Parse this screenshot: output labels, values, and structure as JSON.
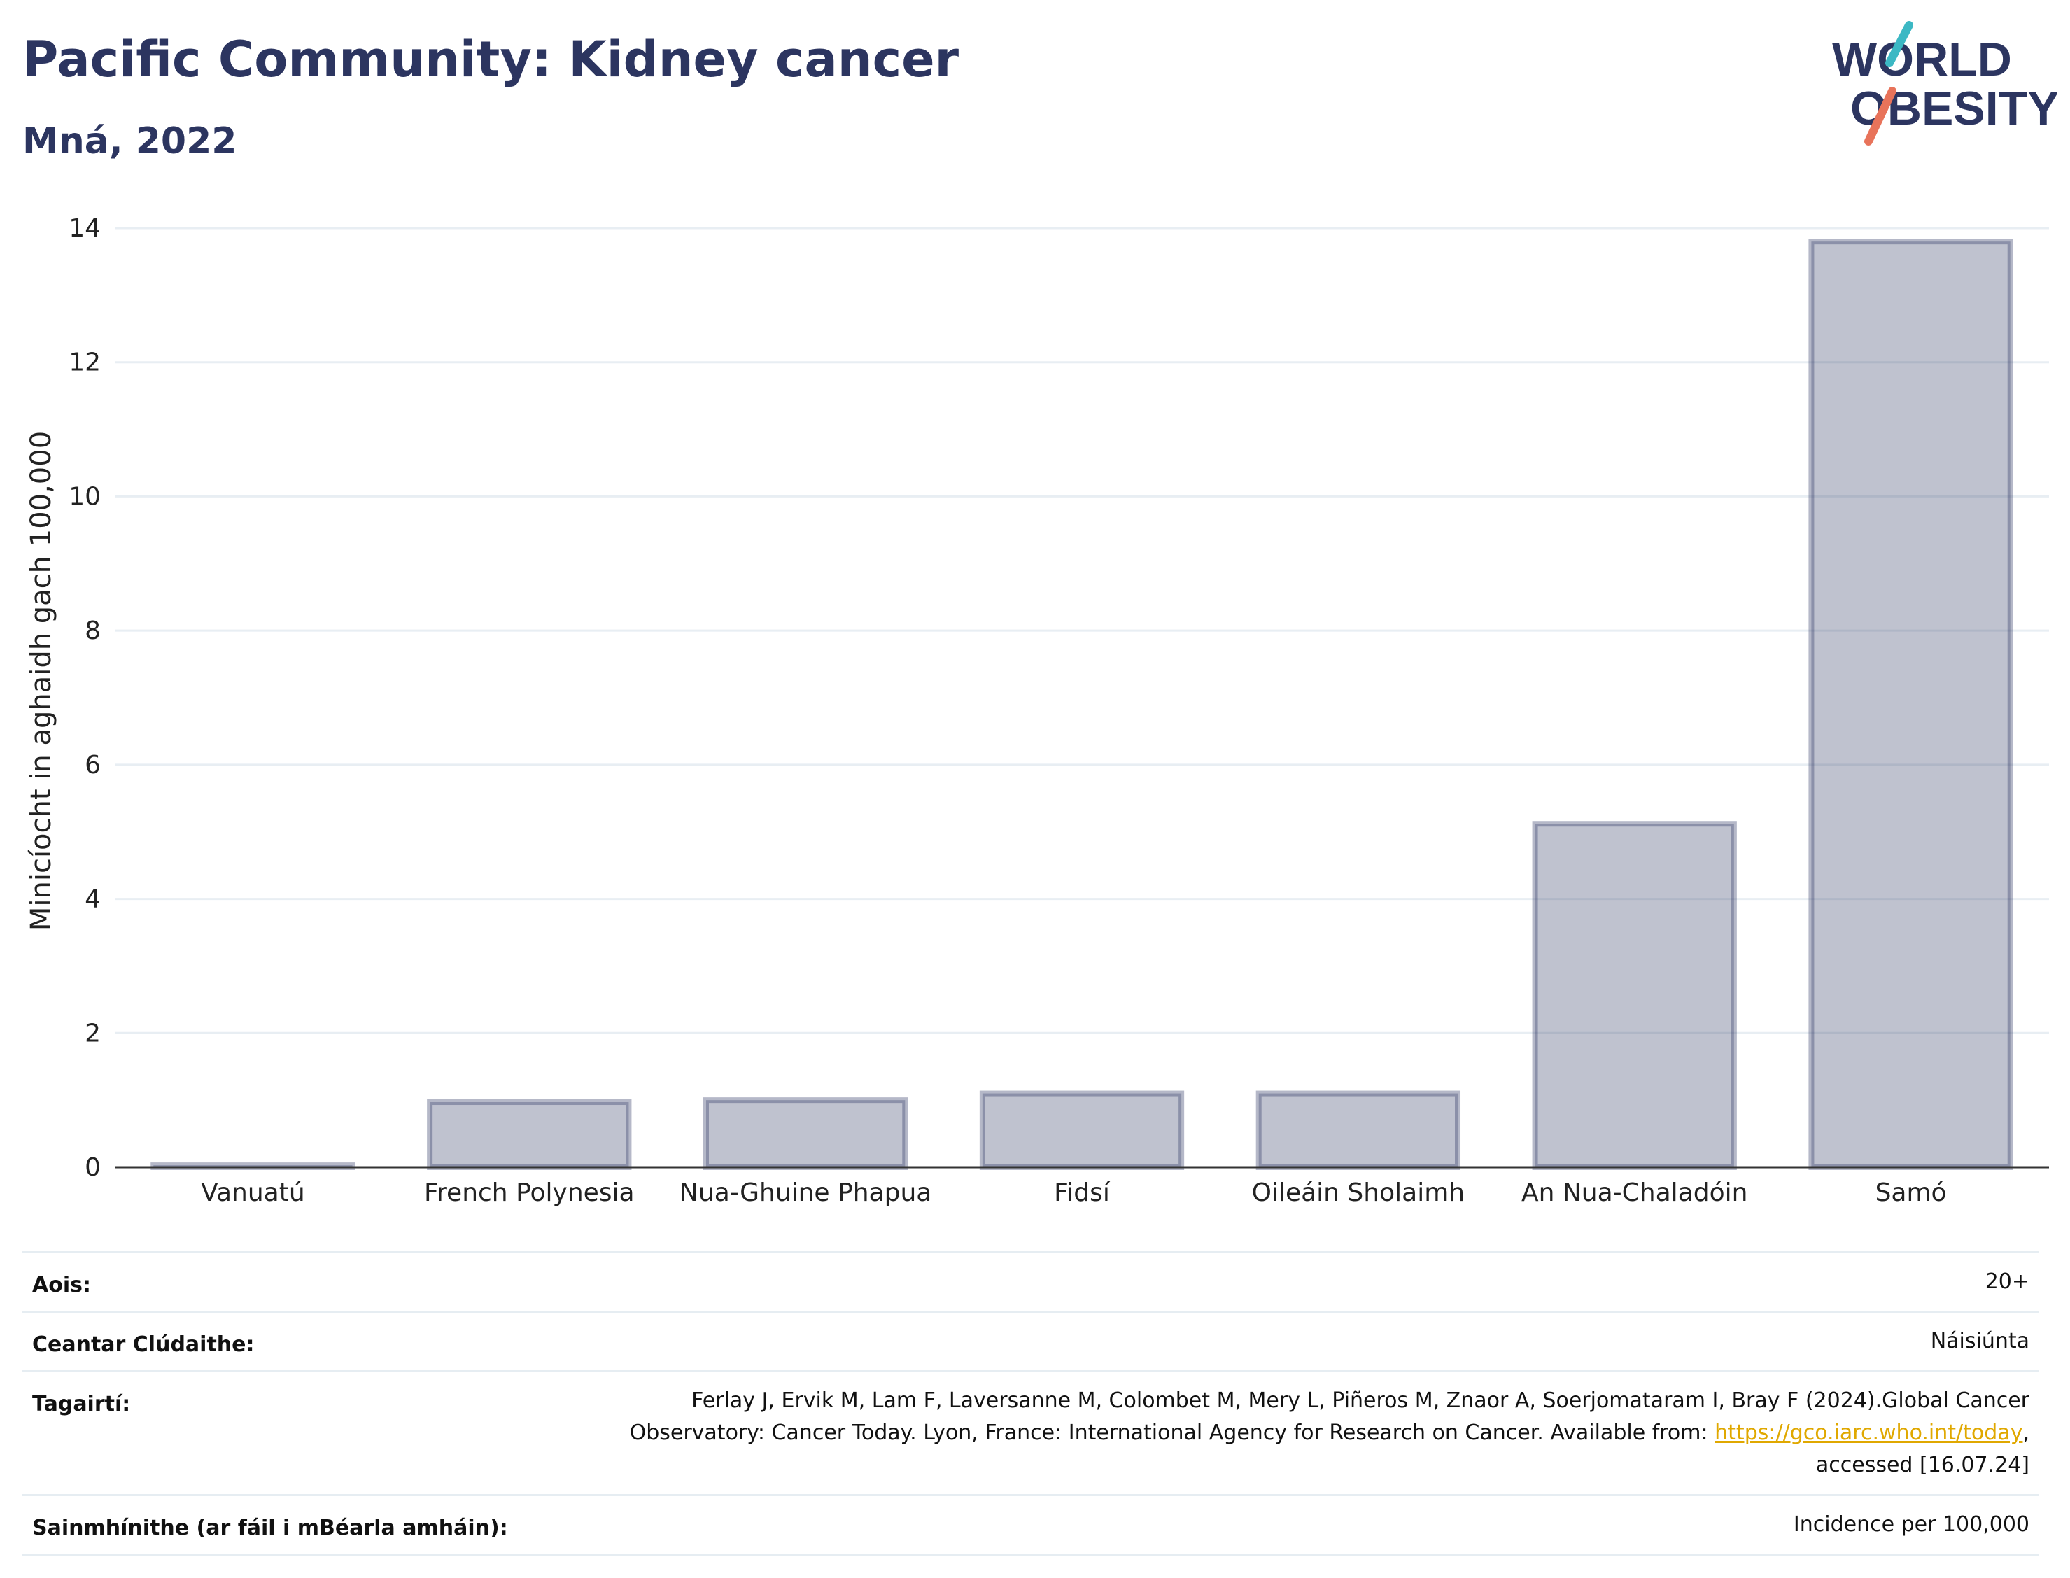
{
  "title": "Pacific Community: Kidney cancer",
  "subtitle": "Mná, 2022",
  "logo": {
    "text_line1": "WORLD",
    "text_line2": "OBESITY",
    "colors": [
      "#2c3560",
      "#3cb8c4",
      "#e8735a"
    ]
  },
  "chart_data": {
    "type": "bar",
    "categories": [
      "Vanuatú",
      "French Polynesia",
      "Nua-Ghuine Phapua",
      "Fidsí",
      "Oileáin Sholaimh",
      "An Nua-Chaladóin",
      "Samó"
    ],
    "values": [
      0.03,
      0.97,
      1.0,
      1.1,
      1.1,
      5.12,
      13.8
    ],
    "ylabel": "Minicíocht in aghaidh gach 100,000",
    "xlabel": "",
    "ylim": [
      0,
      14
    ],
    "yticks": [
      0,
      2,
      4,
      6,
      8,
      10,
      12,
      14
    ],
    "grid": true,
    "bar_color": "#2c3560"
  },
  "info": {
    "age_label": "Aois:",
    "age_value": "20+",
    "coverage_label": "Ceantar Clúdaithe:",
    "coverage_value": "Náisiúnta",
    "refs_label": "Tagairtí:",
    "refs_text_1": "Ferlay J, Ervik M, Lam F, Laversanne M, Colombet M, Mery L, Piñeros M, Znaor A, Soerjomataram I, Bray F (2024).Global Cancer",
    "refs_text_2": "Observatory: Cancer Today. Lyon, France: International Agency for Research on Cancer. Available from:",
    "refs_link": "https://gco.iarc.who.int/today",
    "refs_text_3": ",",
    "refs_text_4": "accessed [16.07.24]",
    "defs_label": "Sainmhínithe (ar fáil i mBéarla amháin):",
    "defs_value": "Incidence per 100,000"
  }
}
